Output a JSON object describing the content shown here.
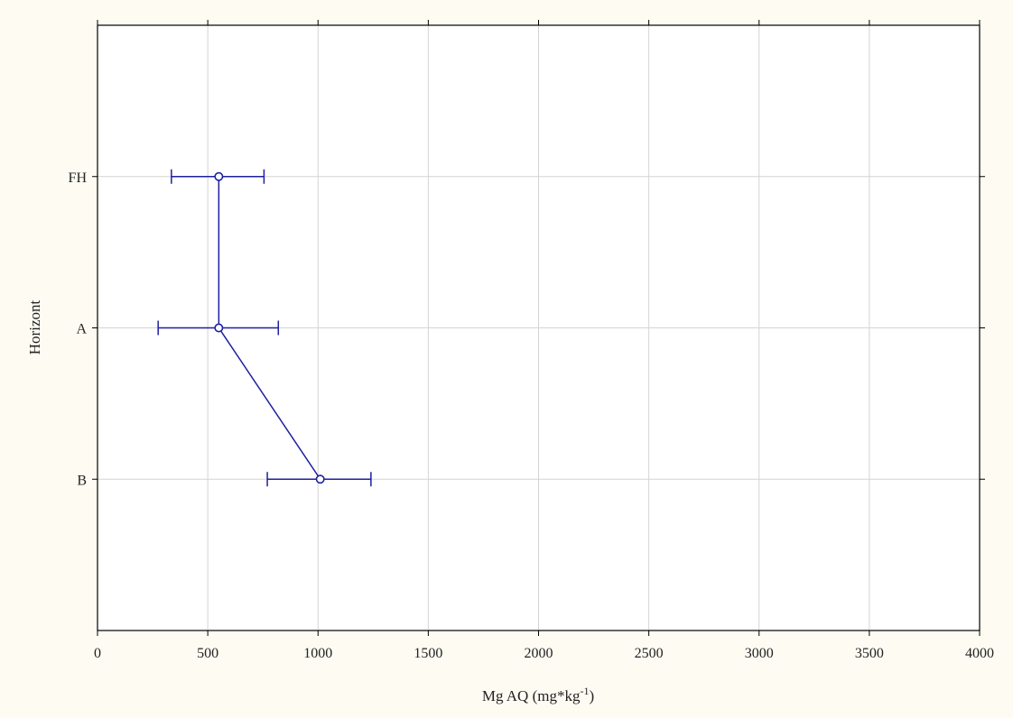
{
  "chart_data": {
    "type": "scatter",
    "orientation": "horizontal",
    "xlabel": "Mg AQ (mg*kg",
    "xlabel_superscript": "-1",
    "xlabel_close": ")",
    "ylabel": "Horizont",
    "xlim": [
      0,
      4000
    ],
    "x_ticks": [
      0,
      500,
      1000,
      1500,
      2000,
      2500,
      3000,
      3500,
      4000
    ],
    "categories": [
      "FH",
      "A",
      "B"
    ],
    "grid": true,
    "series": [
      {
        "color": "#1f1fa0",
        "points": [
          {
            "category": "FH",
            "mean": 550,
            "lower": 335,
            "upper": 755
          },
          {
            "category": "A",
            "mean": 550,
            "lower": 275,
            "upper": 820
          },
          {
            "category": "B",
            "mean": 1010,
            "lower": 770,
            "upper": 1240
          }
        ]
      }
    ]
  }
}
